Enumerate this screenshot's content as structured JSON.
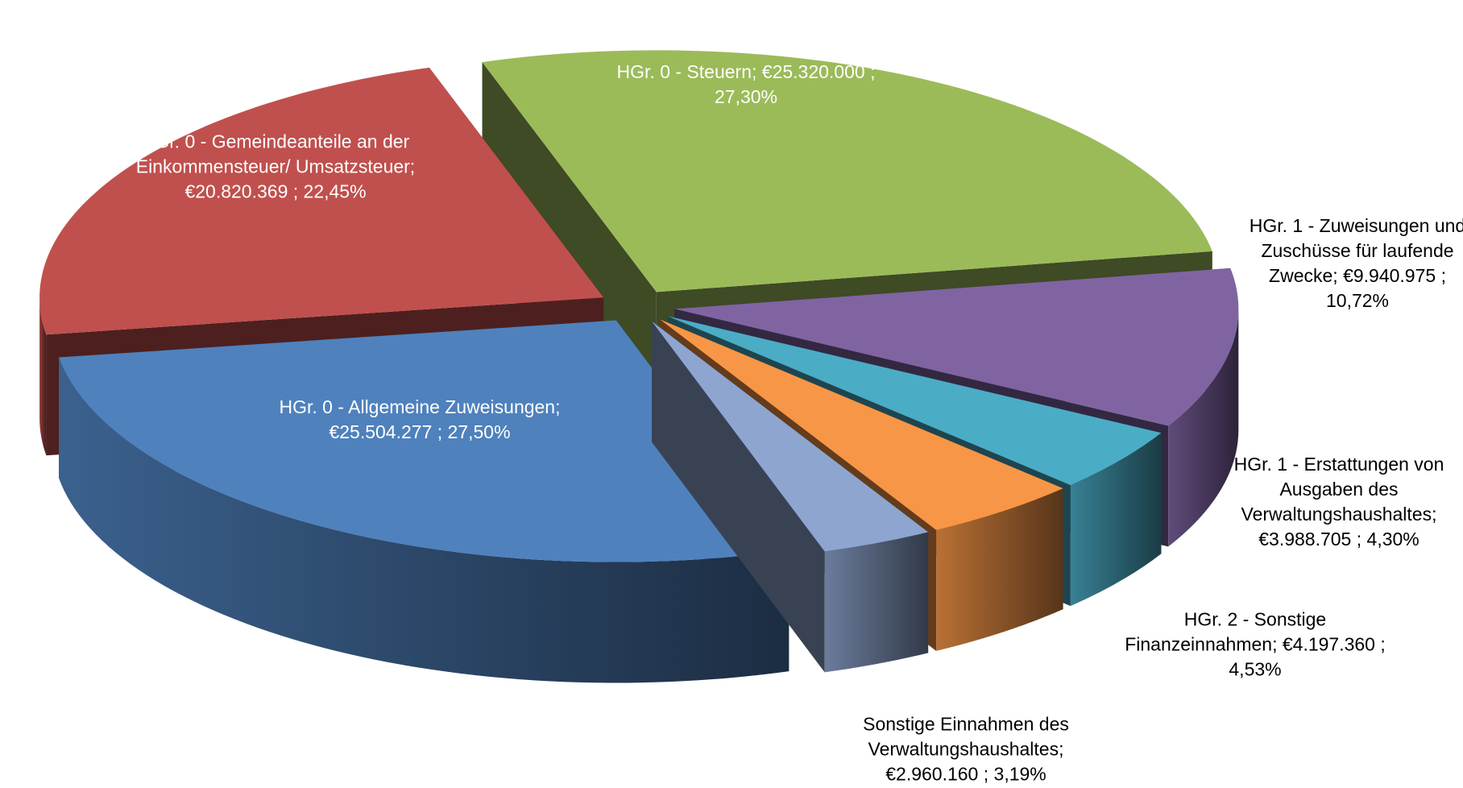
{
  "chart_data": {
    "type": "pie3d",
    "categories": [
      "HGr. 0 - Steuern;",
      "HGr. 1 - Zuweisungen und Zuschüsse für laufende Zwecke;",
      "HGr. 1 - Erstattungen von Ausgaben des Verwaltungshaushaltes;",
      "HGr. 2 - Sonstige Finanzeinnahmen;",
      "Sonstige Einnahmen des Verwaltungshaushaltes;",
      "HGr. 0 - Allgemeine Zuweisungen;",
      "HGr. 0 - Gemeindeanteile an der Einkommensteuer/ Umsatzsteuer;"
    ],
    "values": [
      25320000,
      9940975,
      3988705,
      4197360,
      2960160,
      25504277,
      20820369
    ],
    "value_labels": [
      "€25.320.000",
      "€9.940.975",
      "€3.988.705",
      "€4.197.360",
      "€2.960.160",
      "€25.504.277",
      "€20.820.369"
    ],
    "percentages": [
      27.3,
      10.72,
      4.3,
      4.53,
      3.19,
      27.5,
      22.45
    ],
    "percentage_labels": [
      "27,30%",
      "10,72%",
      "4,30%",
      "4,53%",
      "3,19%",
      "27,50%",
      "22,45%"
    ],
    "label_separator": ";",
    "colors": [
      "#9bbb59",
      "#8064a2",
      "#4bacc6",
      "#f79646",
      "#8ea5d0",
      "#4f81bd",
      "#c0504d"
    ]
  }
}
